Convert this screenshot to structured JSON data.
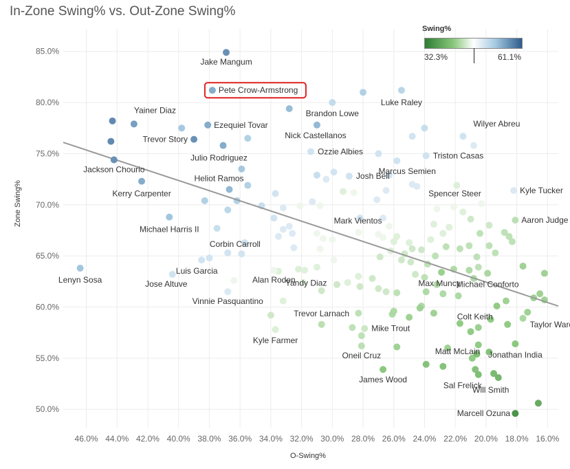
{
  "chart_data": {
    "type": "scatter",
    "title": "In-Zone Swing% vs. Out-Zone Swing%",
    "xlabel": "O-Swing%",
    "ylabel": "Zone Swing%",
    "x_reversed": true,
    "xlim": [
      47.5,
      15.3
    ],
    "ylim": [
      48.2,
      87.2
    ],
    "x_ticks": [
      46,
      44,
      42,
      40,
      38,
      36,
      34,
      32,
      30,
      28,
      26,
      24,
      22,
      20,
      18,
      16
    ],
    "x_tick_labels": [
      "46.0%",
      "44.0%",
      "42.0%",
      "40.0%",
      "38.0%",
      "36.0%",
      "34.0%",
      "32.0%",
      "30.0%",
      "28.0%",
      "26.0%",
      "24.0%",
      "22.0%",
      "20.0%",
      "18.0%",
      "16.0%"
    ],
    "y_ticks": [
      50,
      55,
      60,
      65,
      70,
      75,
      80,
      85
    ],
    "y_tick_labels": [
      "50.0%",
      "55.0%",
      "60.0%",
      "65.0%",
      "70.0%",
      "75.0%",
      "80.0%",
      "85.0%"
    ],
    "legend": {
      "title": "Swing%",
      "min_label": "32.3%",
      "max_label": "61.1%",
      "min": 32.3,
      "max": 61.1,
      "marker_value": 47.0,
      "position": "top-right"
    },
    "colors": {
      "low": "#2e7d32",
      "mid": "#ffffff",
      "high": "#2e5b8c",
      "trend": "#999999"
    },
    "trendline": {
      "x1": 47.5,
      "y1": 76.1,
      "x2": 15.3,
      "y2": 60.1
    },
    "highlight": "Pete Crow-Armstrong",
    "labeled_points": [
      {
        "name": "Jake Mangum",
        "x": 36.9,
        "y": 84.9,
        "c": 57,
        "lx": 0,
        "ly": 18,
        "anchor": "middle"
      },
      {
        "name": "Pete Crow-Armstrong",
        "x": 37.8,
        "y": 81.2,
        "c": 55,
        "lx": 9,
        "ly": 4,
        "anchor": "start"
      },
      {
        "name": "Brandon Lowe",
        "x": 30.0,
        "y": 80.0,
        "c": 50,
        "lx": 0,
        "ly": 20,
        "anchor": "middle"
      },
      {
        "name": "Luke Raley",
        "x": 25.5,
        "y": 81.2,
        "c": 51,
        "lx": 0,
        "ly": 22,
        "anchor": "middle"
      },
      {
        "name": "Yainer Diaz",
        "x": 42.9,
        "y": 77.9,
        "c": 56,
        "lx": 0,
        "ly": -16,
        "anchor": "start"
      },
      {
        "name": "Ezequiel Tovar",
        "x": 38.1,
        "y": 77.8,
        "c": 55,
        "lx": 9,
        "ly": 4,
        "anchor": "start"
      },
      {
        "name": "Trevor Story",
        "x": 39.0,
        "y": 76.4,
        "c": 57,
        "lx": -9,
        "ly": 4,
        "anchor": "end"
      },
      {
        "name": "Nick Castellanos",
        "x": 31.0,
        "y": 77.8,
        "c": 54,
        "lx": -2,
        "ly": 19,
        "anchor": "middle"
      },
      {
        "name": "Wilyer Abreu",
        "x": 21.5,
        "y": 76.7,
        "c": 49,
        "lx": 15,
        "ly": -14,
        "anchor": "start"
      },
      {
        "name": "Ozzie Albies",
        "x": 31.4,
        "y": 75.2,
        "c": 49,
        "lx": 10,
        "ly": 4,
        "anchor": "start"
      },
      {
        "name": "Julio Rodriguez",
        "x": 37.1,
        "y": 75.8,
        "c": 55,
        "lx": -6,
        "ly": 22,
        "anchor": "middle"
      },
      {
        "name": "Triston Casas",
        "x": 23.9,
        "y": 74.8,
        "c": 49,
        "lx": 10,
        "ly": 4,
        "anchor": "start"
      },
      {
        "name": "Jackson Chourio",
        "x": 44.2,
        "y": 74.4,
        "c": 57,
        "lx": 0,
        "ly": 18,
        "anchor": "middle"
      },
      {
        "name": "Marcus Semien",
        "x": 25.8,
        "y": 74.3,
        "c": 49,
        "lx": 15,
        "ly": 19,
        "anchor": "middle"
      },
      {
        "name": "Heliot Ramos",
        "x": 36.7,
        "y": 71.5,
        "c": 54,
        "lx": -15,
        "ly": -12,
        "anchor": "middle"
      },
      {
        "name": "Josh Bell",
        "x": 28.9,
        "y": 72.8,
        "c": 49,
        "lx": 10,
        "ly": 4,
        "anchor": "start"
      },
      {
        "name": "Kerry Carpenter",
        "x": 42.4,
        "y": 72.3,
        "c": 55,
        "lx": 0,
        "ly": 22,
        "anchor": "middle"
      },
      {
        "name": "Kyle Tucker",
        "x": 18.2,
        "y": 71.4,
        "c": 48,
        "lx": 9,
        "ly": 4,
        "anchor": "start"
      },
      {
        "name": "Spencer Steer",
        "x": 21.9,
        "y": 71.9,
        "c": 46,
        "lx": -3,
        "ly": 16,
        "anchor": "middle"
      },
      {
        "name": "Aaron Judge",
        "x": 18.1,
        "y": 68.5,
        "c": 44,
        "lx": 9,
        "ly": 4,
        "anchor": "start"
      },
      {
        "name": "Michael Harris II",
        "x": 40.6,
        "y": 68.8,
        "c": 53,
        "lx": 0,
        "ly": 22,
        "anchor": "middle"
      },
      {
        "name": "Mark Vientos",
        "x": 28.2,
        "y": 68.7,
        "c": 49,
        "lx": -3,
        "ly": 8,
        "anchor": "middle"
      },
      {
        "name": "Corbin Carroll",
        "x": 35.7,
        "y": 66.3,
        "c": 49,
        "lx": -14,
        "ly": 6,
        "anchor": "middle"
      },
      {
        "name": "Lenyn Sosa",
        "x": 46.4,
        "y": 63.8,
        "c": 53,
        "lx": 0,
        "ly": 21,
        "anchor": "middle"
      },
      {
        "name": "Luis Garcia",
        "x": 38.5,
        "y": 64.6,
        "c": 49,
        "lx": -7,
        "ly": 20,
        "anchor": "middle"
      },
      {
        "name": "Jose Altuve",
        "x": 40.4,
        "y": 63.2,
        "c": 49,
        "lx": -9,
        "ly": 18,
        "anchor": "middle"
      },
      {
        "name": "Alan Roden",
        "x": 33.8,
        "y": 63.6,
        "c": 47,
        "lx": 0,
        "ly": 18,
        "anchor": "middle"
      },
      {
        "name": "Yandy Diaz",
        "x": 32.2,
        "y": 63.7,
        "c": 46,
        "lx": 11,
        "ly": 24,
        "anchor": "middle"
      },
      {
        "name": "Max Muncy",
        "x": 22.9,
        "y": 63.4,
        "c": 42,
        "lx": -3,
        "ly": 20,
        "anchor": "middle"
      },
      {
        "name": "Michael Conforto",
        "x": 19.9,
        "y": 63.3,
        "c": 43,
        "lx": 0,
        "ly": 20,
        "anchor": "middle"
      },
      {
        "name": "Vinnie Pasquantino",
        "x": 36.8,
        "y": 61.5,
        "c": 48,
        "lx": 0,
        "ly": 18,
        "anchor": "middle"
      },
      {
        "name": "Trevor Larnach",
        "x": 30.7,
        "y": 58.3,
        "c": 44,
        "lx": 0,
        "ly": -12,
        "anchor": "middle"
      },
      {
        "name": "Colt Keith",
        "x": 20.5,
        "y": 58.0,
        "c": 42,
        "lx": -5,
        "ly": -12,
        "anchor": "middle"
      },
      {
        "name": "Taylor Ward",
        "x": 17.6,
        "y": 58.9,
        "c": 43,
        "lx": 10,
        "ly": 13,
        "anchor": "start"
      },
      {
        "name": "Mike Trout",
        "x": 27.9,
        "y": 57.9,
        "c": 45,
        "lx": 10,
        "ly": 4,
        "anchor": "start"
      },
      {
        "name": "Kyle Farmer",
        "x": 33.7,
        "y": 57.8,
        "c": 46,
        "lx": 0,
        "ly": 20,
        "anchor": "middle"
      },
      {
        "name": "Matt McLain",
        "x": 20.6,
        "y": 55.4,
        "c": 40,
        "lx": -28,
        "ly": 0,
        "anchor": "middle"
      },
      {
        "name": "Jonathan India",
        "x": 18.1,
        "y": 56.4,
        "c": 41,
        "lx": 0,
        "ly": 20,
        "anchor": "middle"
      },
      {
        "name": "Oneil Cruz",
        "x": 28.1,
        "y": 56.2,
        "c": 44,
        "lx": 0,
        "ly": 18,
        "anchor": "middle"
      },
      {
        "name": "James Wood",
        "x": 26.7,
        "y": 53.9,
        "c": 41,
        "lx": 0,
        "ly": 19,
        "anchor": "middle"
      },
      {
        "name": "Sal Frelick",
        "x": 20.5,
        "y": 53.4,
        "c": 40,
        "lx": -23,
        "ly": 20,
        "anchor": "middle"
      },
      {
        "name": "Will Smith",
        "x": 19.2,
        "y": 53.1,
        "c": 39,
        "lx": -11,
        "ly": 22,
        "anchor": "middle"
      },
      {
        "name": "Marcell Ozuna",
        "x": 18.1,
        "y": 49.6,
        "c": 35,
        "lx": -46,
        "ly": 4,
        "anchor": "middle"
      }
    ],
    "other_points": [
      [
        44.3,
        78.2,
        58
      ],
      [
        44.4,
        76.2,
        58
      ],
      [
        39.8,
        77.5,
        53
      ],
      [
        35.5,
        76.5,
        52
      ],
      [
        32.8,
        79.4,
        54
      ],
      [
        28.0,
        81.0,
        52
      ],
      [
        24.8,
        76.7,
        49
      ],
      [
        24.0,
        77.5,
        50
      ],
      [
        20.8,
        75.8,
        48
      ],
      [
        27.0,
        75.0,
        49
      ],
      [
        31.0,
        72.9,
        50
      ],
      [
        29.9,
        73.2,
        49
      ],
      [
        30.4,
        72.5,
        48
      ],
      [
        26.3,
        72.9,
        49
      ],
      [
        24.8,
        72.0,
        48
      ],
      [
        24.5,
        71.8,
        48
      ],
      [
        26.5,
        71.4,
        48
      ],
      [
        27.1,
        70.5,
        48
      ],
      [
        28.6,
        71.2,
        47
      ],
      [
        29.3,
        71.3,
        46
      ],
      [
        26.7,
        68.7,
        48
      ],
      [
        35.9,
        73.5,
        53
      ],
      [
        35.5,
        71.9,
        52
      ],
      [
        36.2,
        70.4,
        52
      ],
      [
        36.8,
        69.5,
        51
      ],
      [
        38.3,
        70.4,
        52
      ],
      [
        34.6,
        69.9,
        50
      ],
      [
        33.7,
        71.1,
        49
      ],
      [
        33.2,
        69.7,
        48
      ],
      [
        32.1,
        69.9,
        47
      ],
      [
        31.3,
        70.3,
        48
      ],
      [
        30.8,
        69.9,
        47
      ],
      [
        33.8,
        68.7,
        49
      ],
      [
        32.8,
        67.9,
        48
      ],
      [
        33.2,
        67.6,
        48
      ],
      [
        32.6,
        67.2,
        48
      ],
      [
        33.5,
        66.9,
        48
      ],
      [
        32.5,
        65.8,
        48
      ],
      [
        31.0,
        67.2,
        47
      ],
      [
        30.6,
        66.7,
        47
      ],
      [
        30.0,
        66.6,
        47
      ],
      [
        30.8,
        65.7,
        47
      ],
      [
        29.9,
        64.6,
        47
      ],
      [
        31.0,
        63.9,
        46
      ],
      [
        31.8,
        63.6,
        46
      ],
      [
        31.9,
        62.4,
        46
      ],
      [
        30.7,
        61.6,
        45
      ],
      [
        29.0,
        62.4,
        46
      ],
      [
        28.3,
        63.0,
        46
      ],
      [
        36.8,
        65.3,
        49
      ],
      [
        35.9,
        65.2,
        49
      ],
      [
        38.0,
        64.8,
        49
      ],
      [
        37.5,
        67.7,
        50
      ],
      [
        36.4,
        62.6,
        47
      ],
      [
        33.5,
        63.5,
        46
      ],
      [
        33.2,
        60.6,
        46
      ],
      [
        34.0,
        59.2,
        45
      ],
      [
        28.3,
        67.3,
        47
      ],
      [
        27.0,
        67.1,
        47
      ],
      [
        26.7,
        66.8,
        47
      ],
      [
        26.3,
        67.9,
        47
      ],
      [
        26.0,
        66.4,
        46
      ],
      [
        25.8,
        66.9,
        46
      ],
      [
        25.0,
        66.3,
        46
      ],
      [
        25.3,
        65.2,
        45
      ],
      [
        24.9,
        64.4,
        45
      ],
      [
        24.6,
        63.2,
        45
      ],
      [
        23.6,
        66.6,
        46
      ],
      [
        22.8,
        67.2,
        46
      ],
      [
        22.4,
        67.8,
        46
      ],
      [
        23.4,
        68.1,
        46
      ],
      [
        23.2,
        69.6,
        47
      ],
      [
        22.1,
        69.8,
        47
      ],
      [
        21.5,
        69.3,
        46
      ],
      [
        21.0,
        68.6,
        45
      ],
      [
        20.3,
        70.1,
        47
      ],
      [
        19.8,
        68.0,
        45
      ],
      [
        20.4,
        67.2,
        44
      ],
      [
        21.1,
        66.0,
        44
      ],
      [
        21.7,
        65.7,
        44
      ],
      [
        22.6,
        65.9,
        44
      ],
      [
        23.3,
        65.0,
        44
      ],
      [
        23.8,
        64.2,
        44
      ],
      [
        24.2,
        65.6,
        45
      ],
      [
        24.8,
        65.7,
        45
      ],
      [
        25.5,
        64.6,
        45
      ],
      [
        26.2,
        65.5,
        46
      ],
      [
        26.9,
        64.9,
        45
      ],
      [
        27.4,
        62.8,
        45
      ],
      [
        27.0,
        61.8,
        45
      ],
      [
        26.5,
        61.5,
        45
      ],
      [
        25.8,
        61.4,
        44
      ],
      [
        24.0,
        62.9,
        44
      ],
      [
        23.2,
        62.2,
        43
      ],
      [
        22.1,
        63.7,
        43
      ],
      [
        21.1,
        63.6,
        43
      ],
      [
        20.5,
        63.9,
        44
      ],
      [
        20.8,
        62.8,
        43
      ],
      [
        20.6,
        64.9,
        44
      ],
      [
        21.8,
        61.1,
        43
      ],
      [
        22.8,
        61.3,
        43
      ],
      [
        23.9,
        61.5,
        43
      ],
      [
        24.2,
        60.1,
        43
      ],
      [
        23.4,
        59.4,
        42
      ],
      [
        25.0,
        59.0,
        42
      ],
      [
        24.3,
        59.9,
        42
      ],
      [
        26.0,
        59.6,
        43
      ],
      [
        26.1,
        59.3,
        43
      ],
      [
        25.8,
        56.1,
        42
      ],
      [
        22.5,
        56.0,
        42
      ],
      [
        21.0,
        57.6,
        41
      ],
      [
        20.5,
        56.3,
        41
      ],
      [
        20.9,
        55.0,
        41
      ],
      [
        20.7,
        53.9,
        40
      ],
      [
        19.5,
        53.5,
        39
      ],
      [
        19.7,
        58.8,
        41
      ],
      [
        19.3,
        60.1,
        41
      ],
      [
        18.6,
        58.3,
        41
      ],
      [
        18.7,
        60.6,
        42
      ],
      [
        17.3,
        59.5,
        42
      ],
      [
        17.6,
        64.0,
        42
      ],
      [
        16.2,
        63.3,
        42
      ],
      [
        16.5,
        61.3,
        42
      ],
      [
        16.2,
        60.7,
        42
      ],
      [
        16.9,
        60.9,
        42
      ],
      [
        18.5,
        66.9,
        44
      ],
      [
        18.8,
        67.3,
        44
      ],
      [
        18.3,
        66.4,
        44
      ],
      [
        19.4,
        65.3,
        44
      ],
      [
        19.8,
        66.0,
        44
      ],
      [
        16.6,
        50.6,
        37
      ],
      [
        19.8,
        55.6,
        40
      ],
      [
        21.7,
        58.4,
        41
      ],
      [
        23.9,
        54.4,
        40
      ],
      [
        22.8,
        54.2,
        40
      ],
      [
        28.3,
        59.4,
        44
      ],
      [
        28.7,
        58.0,
        44
      ],
      [
        28.1,
        57.2,
        44
      ],
      [
        28.2,
        62.0,
        45
      ],
      [
        29.7,
        62.2,
        45
      ]
    ]
  }
}
